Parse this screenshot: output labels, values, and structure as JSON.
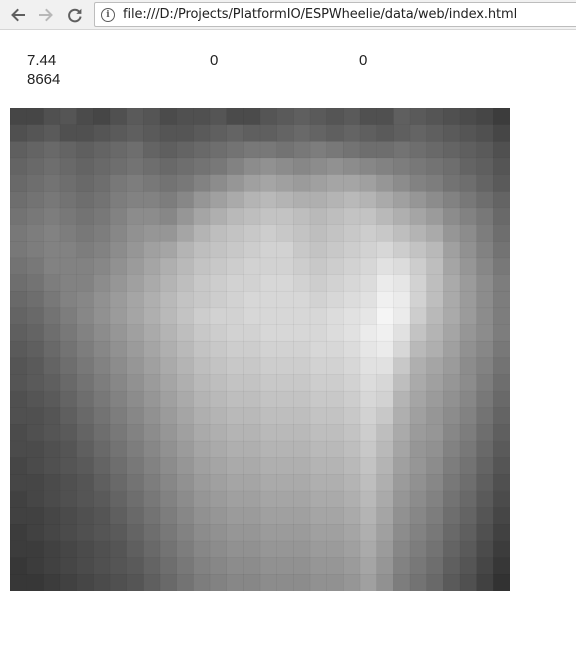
{
  "browser": {
    "url": "file:///D:/Projects/PlatformIO/ESPWheelie/data/web/index.html",
    "back_icon": "arrow-left-icon",
    "forward_icon": "arrow-right-icon",
    "reload_icon": "reload-icon",
    "info_icon": "info-icon"
  },
  "readouts": {
    "value_1": "7.44",
    "value_2": "8664",
    "value_3": "0",
    "value_4": "0"
  },
  "chart_data": {
    "type": "heatmap",
    "colormap": "grayscale",
    "rows": 29,
    "cols": 30,
    "values": [
      [
        70,
        70,
        80,
        85,
        75,
        70,
        80,
        90,
        85,
        75,
        80,
        80,
        85,
        75,
        75,
        85,
        90,
        95,
        90,
        85,
        90,
        80,
        80,
        95,
        90,
        85,
        80,
        75,
        70,
        60
      ],
      [
        80,
        85,
        90,
        80,
        80,
        85,
        90,
        95,
        90,
        85,
        85,
        90,
        95,
        100,
        95,
        95,
        100,
        105,
        100,
        95,
        100,
        95,
        90,
        95,
        100,
        95,
        90,
        85,
        80,
        70
      ],
      [
        95,
        100,
        105,
        100,
        95,
        100,
        105,
        110,
        100,
        95,
        100,
        105,
        110,
        115,
        120,
        120,
        115,
        120,
        125,
        120,
        115,
        110,
        110,
        115,
        110,
        105,
        100,
        95,
        90,
        80
      ],
      [
        100,
        105,
        110,
        105,
        100,
        105,
        110,
        115,
        110,
        105,
        110,
        115,
        120,
        130,
        140,
        145,
        140,
        135,
        140,
        145,
        140,
        135,
        130,
        125,
        120,
        115,
        110,
        100,
        95,
        85
      ],
      [
        105,
        110,
        115,
        110,
        105,
        110,
        120,
        125,
        120,
        115,
        120,
        130,
        140,
        150,
        160,
        165,
        160,
        155,
        160,
        165,
        165,
        160,
        150,
        140,
        130,
        125,
        115,
        110,
        100,
        90
      ],
      [
        110,
        115,
        120,
        115,
        110,
        115,
        125,
        130,
        130,
        125,
        135,
        150,
        160,
        170,
        180,
        185,
        180,
        175,
        175,
        180,
        185,
        180,
        170,
        160,
        150,
        140,
        130,
        120,
        110,
        100
      ],
      [
        115,
        120,
        125,
        120,
        115,
        120,
        130,
        140,
        140,
        135,
        150,
        165,
        175,
        185,
        190,
        195,
        195,
        190,
        185,
        190,
        195,
        195,
        185,
        175,
        165,
        155,
        140,
        130,
        120,
        105
      ],
      [
        120,
        125,
        130,
        125,
        120,
        125,
        135,
        145,
        150,
        150,
        165,
        180,
        190,
        195,
        200,
        205,
        200,
        195,
        190,
        195,
        200,
        205,
        200,
        190,
        180,
        170,
        150,
        140,
        125,
        110
      ],
      [
        120,
        125,
        130,
        130,
        125,
        130,
        140,
        150,
        160,
        165,
        180,
        190,
        195,
        200,
        205,
        210,
        210,
        200,
        195,
        200,
        205,
        210,
        215,
        205,
        195,
        185,
        160,
        145,
        130,
        115
      ],
      [
        115,
        120,
        130,
        130,
        130,
        135,
        145,
        155,
        165,
        175,
        185,
        195,
        200,
        205,
        210,
        210,
        210,
        205,
        200,
        205,
        210,
        215,
        225,
        220,
        205,
        190,
        165,
        150,
        135,
        120
      ],
      [
        110,
        115,
        125,
        130,
        130,
        140,
        150,
        160,
        170,
        180,
        190,
        200,
        205,
        210,
        210,
        215,
        215,
        210,
        205,
        210,
        215,
        220,
        235,
        230,
        210,
        190,
        170,
        155,
        140,
        125
      ],
      [
        105,
        110,
        120,
        130,
        135,
        145,
        155,
        165,
        175,
        185,
        195,
        200,
        205,
        210,
        215,
        215,
        215,
        215,
        210,
        215,
        220,
        225,
        240,
        235,
        210,
        190,
        170,
        155,
        140,
        125
      ],
      [
        100,
        105,
        115,
        125,
        135,
        145,
        155,
        165,
        175,
        185,
        195,
        205,
        210,
        210,
        215,
        215,
        215,
        215,
        215,
        220,
        225,
        230,
        245,
        235,
        205,
        185,
        170,
        155,
        140,
        125
      ],
      [
        95,
        100,
        110,
        120,
        130,
        140,
        150,
        160,
        170,
        180,
        190,
        200,
        205,
        210,
        210,
        215,
        215,
        215,
        215,
        220,
        225,
        235,
        240,
        225,
        195,
        180,
        165,
        150,
        140,
        125
      ],
      [
        90,
        95,
        105,
        115,
        125,
        135,
        145,
        155,
        165,
        175,
        185,
        195,
        200,
        205,
        205,
        210,
        210,
        210,
        215,
        215,
        220,
        230,
        235,
        215,
        185,
        175,
        160,
        145,
        135,
        120
      ],
      [
        85,
        90,
        100,
        110,
        120,
        130,
        140,
        150,
        160,
        170,
        180,
        190,
        195,
        200,
        200,
        205,
        205,
        205,
        210,
        210,
        215,
        225,
        225,
        200,
        175,
        165,
        155,
        140,
        130,
        115
      ],
      [
        85,
        90,
        95,
        105,
        115,
        125,
        135,
        145,
        155,
        165,
        175,
        185,
        190,
        195,
        195,
        200,
        200,
        200,
        205,
        205,
        210,
        220,
        215,
        190,
        170,
        160,
        150,
        140,
        125,
        110
      ],
      [
        80,
        85,
        90,
        100,
        110,
        120,
        130,
        140,
        150,
        160,
        170,
        180,
        185,
        190,
        190,
        195,
        195,
        195,
        200,
        200,
        205,
        215,
        210,
        180,
        165,
        155,
        145,
        135,
        120,
        105
      ],
      [
        80,
        80,
        85,
        95,
        105,
        115,
        125,
        135,
        145,
        155,
        165,
        175,
        180,
        185,
        185,
        190,
        190,
        190,
        195,
        195,
        200,
        210,
        200,
        175,
        160,
        150,
        140,
        130,
        115,
        100
      ],
      [
        75,
        80,
        85,
        90,
        100,
        110,
        120,
        130,
        140,
        150,
        160,
        170,
        175,
        180,
        180,
        185,
        185,
        185,
        190,
        190,
        195,
        205,
        190,
        170,
        155,
        150,
        135,
        125,
        110,
        95
      ],
      [
        75,
        75,
        80,
        85,
        95,
        105,
        115,
        125,
        135,
        145,
        155,
        165,
        170,
        175,
        175,
        180,
        180,
        180,
        185,
        185,
        190,
        200,
        185,
        165,
        150,
        145,
        130,
        120,
        105,
        90
      ],
      [
        70,
        75,
        80,
        85,
        90,
        100,
        110,
        120,
        130,
        140,
        150,
        160,
        165,
        170,
        170,
        175,
        175,
        175,
        180,
        180,
        185,
        195,
        180,
        160,
        150,
        140,
        125,
        115,
        100,
        85
      ],
      [
        70,
        70,
        75,
        80,
        85,
        95,
        105,
        115,
        125,
        135,
        145,
        155,
        160,
        165,
        165,
        170,
        170,
        170,
        175,
        175,
        180,
        190,
        175,
        155,
        145,
        135,
        120,
        110,
        95,
        80
      ],
      [
        65,
        70,
        75,
        80,
        85,
        90,
        100,
        110,
        120,
        130,
        140,
        150,
        155,
        160,
        160,
        165,
        165,
        165,
        170,
        170,
        175,
        185,
        170,
        150,
        140,
        130,
        115,
        105,
        90,
        75
      ],
      [
        65,
        65,
        70,
        75,
        80,
        85,
        95,
        105,
        115,
        125,
        135,
        145,
        150,
        155,
        155,
        160,
        160,
        160,
        165,
        165,
        170,
        180,
        165,
        145,
        135,
        125,
        110,
        100,
        85,
        70
      ],
      [
        60,
        65,
        70,
        75,
        80,
        85,
        90,
        100,
        110,
        120,
        130,
        140,
        145,
        150,
        150,
        155,
        155,
        155,
        160,
        160,
        165,
        175,
        160,
        140,
        130,
        120,
        105,
        95,
        80,
        65
      ],
      [
        60,
        60,
        65,
        70,
        75,
        80,
        85,
        95,
        105,
        115,
        125,
        135,
        140,
        145,
        145,
        150,
        150,
        150,
        155,
        155,
        160,
        170,
        155,
        135,
        125,
        115,
        100,
        90,
        75,
        60
      ],
      [
        55,
        60,
        65,
        70,
        75,
        80,
        85,
        90,
        100,
        110,
        120,
        130,
        135,
        140,
        140,
        145,
        145,
        145,
        150,
        150,
        155,
        165,
        150,
        130,
        120,
        110,
        95,
        85,
        70,
        55
      ],
      [
        55,
        55,
        60,
        65,
        70,
        75,
        80,
        85,
        95,
        105,
        115,
        125,
        130,
        135,
        135,
        140,
        140,
        140,
        145,
        145,
        150,
        160,
        145,
        125,
        115,
        105,
        90,
        80,
        65,
        50
      ]
    ]
  }
}
